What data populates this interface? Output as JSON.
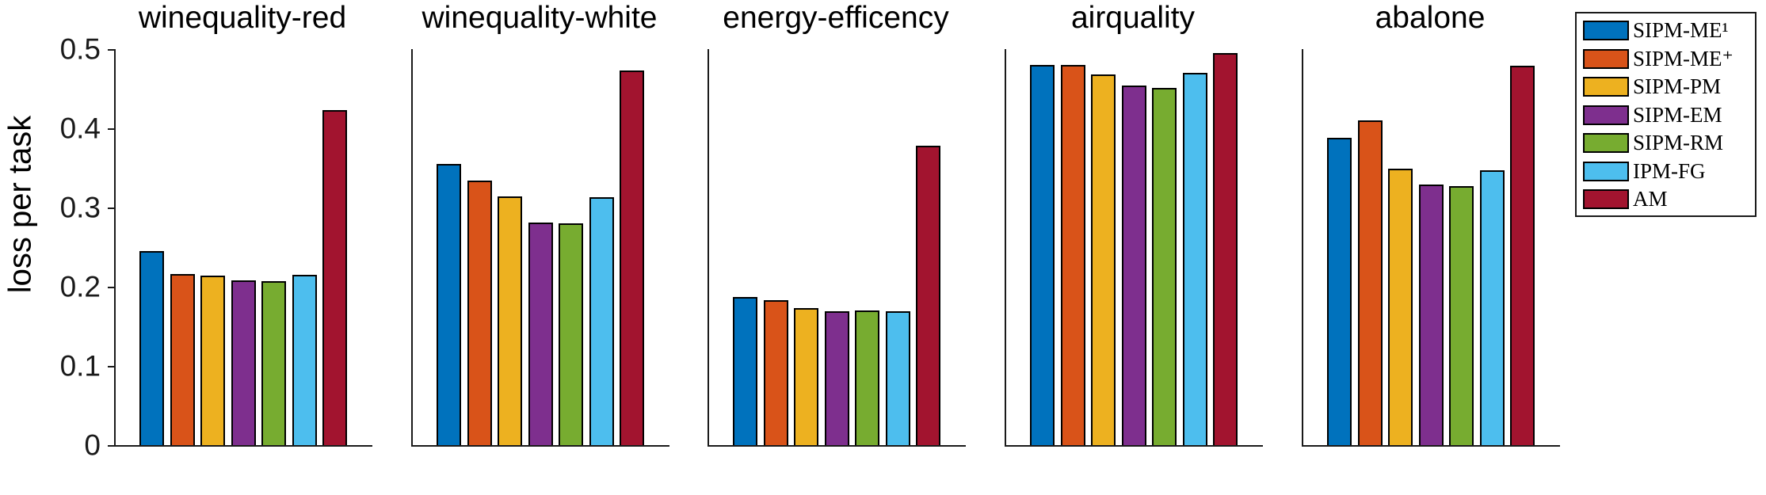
{
  "figure": {
    "background": "#ffffff",
    "axis_color": "#1a1a1a",
    "bar_edge_color": "#000000",
    "text_color": "#000000"
  },
  "chart_data": {
    "type": "bar",
    "title": "",
    "xlabel": "",
    "ylabel": "loss per task",
    "ylim": [
      0,
      0.5
    ],
    "yticks": [
      "0",
      "0.1",
      "0.2",
      "0.3",
      "0.4",
      "0.5"
    ],
    "grid": false,
    "legend_position": "outside-top-right",
    "series": [
      {
        "name": "SIPM-ME¹",
        "color": "#0072BD"
      },
      {
        "name": "SIPM-ME⁺",
        "color": "#D95319"
      },
      {
        "name": "SIPM-PM",
        "color": "#EDB120"
      },
      {
        "name": "SIPM-EM",
        "color": "#7E2F8E"
      },
      {
        "name": "SIPM-RM",
        "color": "#77AC30"
      },
      {
        "name": "IPM-FG",
        "color": "#4DBEEE"
      },
      {
        "name": "AM",
        "color": "#A2142F"
      }
    ],
    "panels": [
      {
        "title": "winequality-red",
        "values": [
          0.245,
          0.216,
          0.214,
          0.208,
          0.207,
          0.215,
          0.423
        ]
      },
      {
        "title": "winequality-white",
        "values": [
          0.355,
          0.334,
          0.314,
          0.281,
          0.28,
          0.313,
          0.473
        ]
      },
      {
        "title": "energy-efficency",
        "values": [
          0.187,
          0.183,
          0.173,
          0.169,
          0.17,
          0.169,
          0.378
        ]
      },
      {
        "title": "airquality",
        "values": [
          0.48,
          0.48,
          0.468,
          0.454,
          0.451,
          0.47,
          0.495
        ]
      },
      {
        "title": "abalone",
        "values": [
          0.388,
          0.41,
          0.349,
          0.329,
          0.327,
          0.347,
          0.479
        ]
      }
    ]
  }
}
